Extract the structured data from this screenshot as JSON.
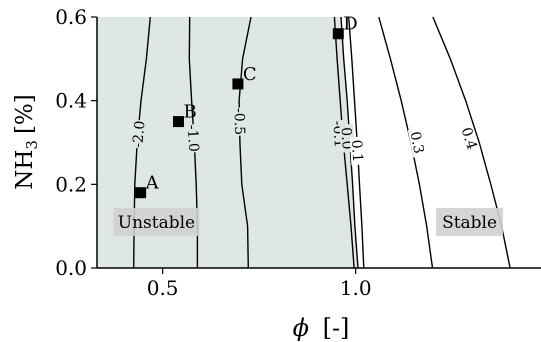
{
  "chart_data": {
    "type": "contour",
    "title": "",
    "xlabel_symbol": "ϕ",
    "xlabel_unit": "[-]",
    "ylabel_base": "NH",
    "ylabel_sub": "3",
    "ylabel_unit": "[%]",
    "xlim": [
      0.33,
      1.48
    ],
    "ylim": [
      0.0,
      0.6
    ],
    "xticks": [
      {
        "value": 0.5,
        "label": "0.5"
      },
      {
        "value": 1.0,
        "label": "1.0"
      }
    ],
    "yticks": [
      {
        "value": 0.0,
        "label": "0.0"
      },
      {
        "value": 0.2,
        "label": "0.2"
      },
      {
        "value": 0.4,
        "label": "0.4"
      },
      {
        "value": 0.6,
        "label": "0.6"
      }
    ],
    "unstable_fill_color": "#dfe6e6",
    "line_color": "#000000",
    "region_label_bg": "#d0d0d0",
    "contours": [
      {
        "level": "-2.0",
        "label": "-2.0",
        "x": [
          0.468,
          0.458,
          0.444,
          0.434,
          0.428,
          0.426,
          0.425
        ],
        "y": [
          0.6,
          0.5,
          0.4,
          0.3,
          0.2,
          0.1,
          0.0
        ],
        "label_at": [
          0.437,
          0.32
        ]
      },
      {
        "level": "-1.0",
        "label": "-1.0",
        "x": [
          0.57,
          0.569,
          0.575,
          0.582,
          0.587,
          0.59,
          0.59
        ],
        "y": [
          0.6,
          0.5,
          0.4,
          0.3,
          0.2,
          0.1,
          0.0
        ],
        "label_at": [
          0.58,
          0.31
        ]
      },
      {
        "level": "-0.5",
        "label": "-0.5",
        "x": [
          0.729,
          0.707,
          0.698,
          0.7,
          0.705,
          0.72,
          0.722
        ],
        "y": [
          0.6,
          0.5,
          0.4,
          0.3,
          0.2,
          0.1,
          0.0
        ],
        "label_at": [
          0.7,
          0.35
        ]
      },
      {
        "level": "-0.1",
        "label": "-0.1",
        "x": [
          0.945,
          0.952,
          0.96,
          0.968,
          0.978,
          0.988,
          0.996
        ],
        "y": [
          0.6,
          0.5,
          0.4,
          0.3,
          0.2,
          0.1,
          0.0
        ],
        "label_at": [
          0.957,
          0.32
        ]
      },
      {
        "level": "0.0",
        "label": "0.0",
        "x": [
          0.962,
          0.969,
          0.978,
          0.985,
          0.992,
          0.998,
          1.006
        ],
        "y": [
          0.6,
          0.5,
          0.4,
          0.3,
          0.2,
          0.1,
          0.0
        ],
        "label_at": [
          0.978,
          0.31
        ]
      },
      {
        "level": "0.1",
        "label": "0.1",
        "x": [
          0.982,
          0.99,
          0.997,
          1.004,
          1.01,
          1.016,
          1.021
        ],
        "y": [
          0.6,
          0.5,
          0.4,
          0.3,
          0.2,
          0.1,
          0.0
        ],
        "label_at": [
          1.005,
          0.28
        ]
      },
      {
        "level": "0.3",
        "label": "0.3",
        "x": [
          1.06,
          1.09,
          1.118,
          1.143,
          1.165,
          1.184,
          1.199
        ],
        "y": [
          0.6,
          0.5,
          0.4,
          0.3,
          0.2,
          0.1,
          0.0
        ],
        "label_at": [
          1.16,
          0.3
        ]
      },
      {
        "level": "0.4",
        "label": "0.4",
        "x": [
          1.2,
          1.245,
          1.285,
          1.32,
          1.35,
          1.378,
          1.4
        ],
        "y": [
          0.6,
          0.5,
          0.4,
          0.3,
          0.2,
          0.1,
          0.0
        ],
        "label_at": [
          1.295,
          0.31
        ]
      }
    ],
    "points": [
      {
        "label": "A",
        "x": 0.443,
        "y": 0.18
      },
      {
        "label": "B",
        "x": 0.541,
        "y": 0.35
      },
      {
        "label": "C",
        "x": 0.695,
        "y": 0.44
      },
      {
        "label": "D",
        "x": 0.955,
        "y": 0.56
      }
    ],
    "regions": [
      {
        "label": "Unstable",
        "x": 0.484,
        "y": 0.11
      },
      {
        "label": "Stable",
        "x": 1.295,
        "y": 0.11
      }
    ]
  }
}
